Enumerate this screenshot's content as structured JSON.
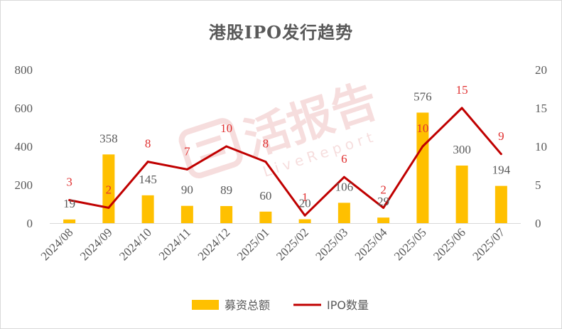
{
  "chart_data": {
    "type": "bar",
    "title": "港股IPO发行趋势",
    "categories": [
      "2024/08",
      "2024/09",
      "2024/10",
      "2024/11",
      "2024/12",
      "2025/01",
      "2025/02",
      "2025/03",
      "2025/04",
      "2025/05",
      "2025/06",
      "2025/07"
    ],
    "series": [
      {
        "name": "募资总额",
        "type": "bar",
        "axis": "left",
        "values": [
          19,
          358,
          145,
          90,
          89,
          60,
          20,
          106,
          29,
          576,
          300,
          194
        ],
        "color": "#FFC000"
      },
      {
        "name": "IPO数量",
        "type": "line",
        "axis": "right",
        "values": [
          3,
          2,
          8,
          7,
          10,
          8,
          1,
          6,
          2,
          10,
          15,
          9
        ],
        "color": "#C00000",
        "label_color": "#E03030"
      }
    ],
    "y_left": {
      "ylim": [
        0,
        800
      ],
      "ticks": [
        0,
        200,
        400,
        600,
        800
      ]
    },
    "y_right": {
      "ylim": [
        0,
        20
      ],
      "ticks": [
        0,
        5,
        10,
        15,
        20
      ]
    },
    "grid": false,
    "legend": "bottom"
  },
  "watermark": {
    "main": "活报告",
    "sub": "LiveReport"
  }
}
